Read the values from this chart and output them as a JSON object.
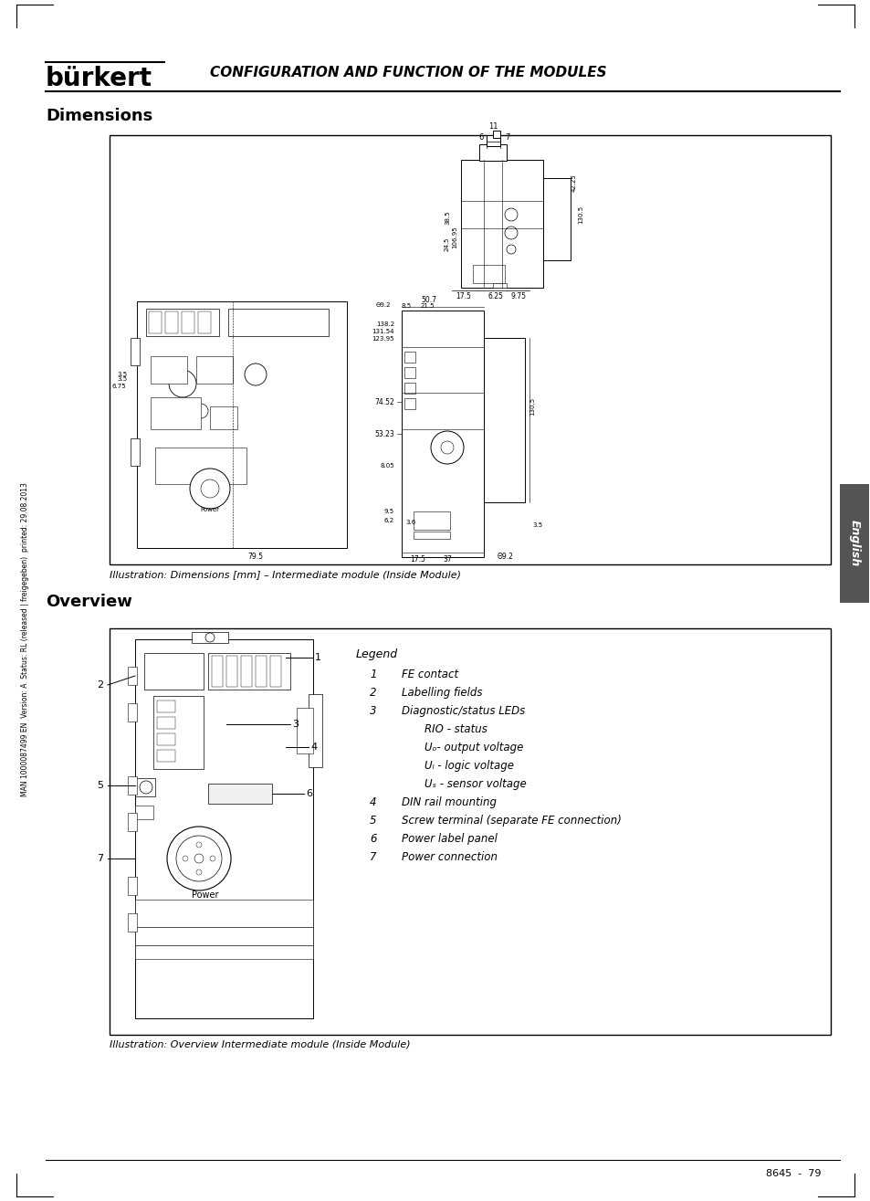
{
  "page_bg": "#ffffff",
  "header_logo": "bürkert",
  "header_title": "CONFIGURATION AND FUNCTION OF THE MODULES",
  "footer_text": "8645  -  79",
  "sidebar_text": "English",
  "sidebar_bg": "#555555",
  "left_margin_text": "MAN 1000087499 EN  Version: A  Status: RL (released | freigegeben)  printed: 29.08.2013",
  "dim_title": "Dimensions",
  "dim_caption": "Illustration: Dimensions [mm] – Intermediate module (Inside Module)",
  "ov_title": "Overview",
  "ov_caption": "Illustration: Overview Intermediate module (Inside Module)",
  "legend_title": "Legend",
  "legend_entries": [
    {
      "num": "1",
      "text": "FE contact",
      "indent": false
    },
    {
      "num": "2",
      "text": "Labelling fields",
      "indent": false
    },
    {
      "num": "3",
      "text": "Diagnostic/status LEDs",
      "indent": false
    },
    {
      "num": "",
      "text": "RIO - status",
      "indent": true
    },
    {
      "num": "",
      "text": "Uₒ- output voltage",
      "indent": true
    },
    {
      "num": "",
      "text": "Uₗ - logic voltage",
      "indent": true
    },
    {
      "num": "",
      "text": "Uₛ - sensor voltage",
      "indent": true
    },
    {
      "num": "4",
      "text": "DIN rail mounting",
      "indent": false
    },
    {
      "num": "5",
      "text": "Screw terminal (separate FE connection)",
      "indent": false
    },
    {
      "num": "6",
      "text": "Power label panel",
      "indent": false
    },
    {
      "num": "7",
      "text": "Power connection",
      "indent": false
    }
  ]
}
